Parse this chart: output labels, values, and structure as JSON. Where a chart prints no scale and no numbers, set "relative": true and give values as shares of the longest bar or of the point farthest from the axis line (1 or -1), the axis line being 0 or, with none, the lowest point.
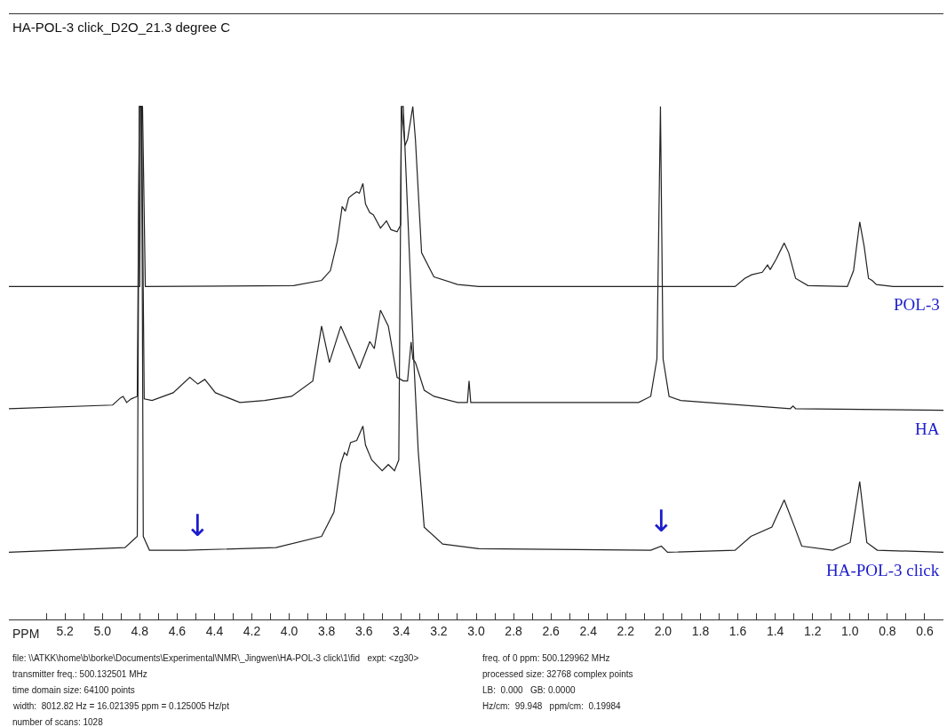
{
  "chart_data": {
    "type": "line",
    "title": "HA-POL-3 click_D2O_21.3 degree C",
    "xlabel": "PPM",
    "relative": true,
    "xlim": [
      5.5,
      0.5
    ],
    "xticks": [
      5.2,
      {
        "value": 5,
        "label": "5.0"
      },
      4.8,
      4.6,
      4.4,
      4.2,
      {
        "value": 4,
        "label": "4.0"
      },
      3.8,
      3.6,
      3.4,
      3.2,
      {
        "value": 3,
        "label": "3.0"
      },
      2.8,
      2.6,
      2.4,
      2.2,
      {
        "value": 2,
        "label": "2.0"
      },
      1.8,
      1.6,
      1.4,
      1.2,
      {
        "value": 1,
        "label": "1.0"
      },
      0.8,
      0.6,
      {
        "value": 5.3,
        "label": null
      },
      {
        "value": 5.1,
        "label": null
      },
      {
        "value": 4.9,
        "label": null
      },
      {
        "value": 4.7,
        "label": null
      },
      {
        "value": 4.5,
        "label": null
      },
      {
        "value": 4.3,
        "label": null
      },
      {
        "value": 4.1,
        "label": null
      },
      {
        "value": 3.9,
        "label": null
      },
      {
        "value": 3.7,
        "label": null
      },
      {
        "value": 3.5,
        "label": null
      },
      {
        "value": 3.3,
        "label": null
      },
      {
        "value": 3.1,
        "label": null
      },
      {
        "value": 2.9,
        "label": null
      },
      {
        "value": 2.7,
        "label": null
      },
      {
        "value": 2.5,
        "label": null
      },
      {
        "value": 2.3,
        "label": null
      },
      {
        "value": 2.1,
        "label": null
      },
      {
        "value": 1.9,
        "label": null
      },
      {
        "value": 1.7,
        "label": null
      },
      {
        "value": 1.5,
        "label": null
      },
      {
        "value": 1.3,
        "label": null
      },
      {
        "value": 1.1,
        "label": null
      },
      {
        "value": 0.9,
        "label": null
      },
      {
        "value": 0.7,
        "label": null
      }
    ],
    "legend": false,
    "marker": "none",
    "line_style": "solid",
    "series": [
      {
        "name": "POL-3",
        "color": "#222222",
        "x": [
          5.5,
          4.82,
          4.8,
          4.795,
          4.785,
          4.77,
          3.977,
          3.827,
          3.78,
          3.743,
          3.717,
          3.7,
          3.682,
          3.658,
          3.639,
          3.625,
          3.606,
          3.592,
          3.569,
          3.55,
          3.512,
          3.48,
          3.456,
          3.423,
          3.404,
          3.4,
          3.381,
          3.367,
          3.339,
          3.325,
          3.292,
          3.226,
          3.099,
          2.986,
          1.615,
          1.563,
          1.526,
          1.469,
          1.441,
          1.427,
          1.394,
          1.352,
          1.328,
          1.291,
          1.225,
          1.014,
          0.981,
          0.948,
          0.924,
          0.901,
          0.882,
          0.859,
          0.769,
          0.5
        ],
        "values": [
          0.649,
          0.649,
          0.649,
          1.0,
          1.0,
          0.649,
          0.651,
          0.661,
          0.68,
          0.737,
          0.805,
          0.796,
          0.822,
          0.829,
          0.834,
          0.831,
          0.85,
          0.81,
          0.793,
          0.789,
          0.763,
          0.777,
          0.76,
          0.756,
          0.769,
          1.0,
          0.924,
          0.936,
          1.0,
          0.936,
          0.715,
          0.668,
          0.653,
          0.649,
          0.649,
          0.665,
          0.672,
          0.677,
          0.691,
          0.682,
          0.703,
          0.734,
          0.715,
          0.665,
          0.651,
          0.649,
          0.68,
          0.775,
          0.727,
          0.665,
          0.661,
          0.653,
          0.649,
          0.649
        ]
      },
      {
        "name": "HA",
        "color": "#222222",
        "x": [
          5.5,
          4.945,
          4.903,
          4.889,
          4.87,
          4.846,
          4.813,
          4.802,
          4.79,
          4.776,
          4.734,
          4.621,
          4.532,
          4.489,
          4.452,
          4.395,
          4.264,
          4.132,
          3.987,
          3.874,
          3.827,
          3.785,
          3.724,
          3.625,
          3.569,
          3.545,
          3.512,
          3.47,
          3.423,
          3.39,
          3.367,
          3.348,
          3.339,
          3.325,
          3.278,
          3.226,
          3.099,
          3.047,
          3.038,
          3.029,
          2.131,
          2.066,
          2.033,
          2.014,
          2.0,
          1.968,
          1.906,
          1.319,
          1.305,
          1.291,
          0.5
        ],
        "values": [
          0.411,
          0.418,
          0.432,
          0.435,
          0.423,
          0.43,
          0.435,
          1.0,
          1.0,
          0.43,
          0.427,
          0.442,
          0.472,
          0.459,
          0.468,
          0.442,
          0.423,
          0.427,
          0.435,
          0.465,
          0.572,
          0.501,
          0.572,
          0.489,
          0.542,
          0.528,
          0.603,
          0.572,
          0.472,
          0.465,
          0.465,
          0.541,
          0.508,
          0.501,
          0.447,
          0.435,
          0.423,
          0.423,
          0.465,
          0.423,
          0.423,
          0.435,
          0.508,
          1.0,
          0.508,
          0.435,
          0.427,
          0.411,
          0.416,
          0.411,
          0.408
        ]
      },
      {
        "name": "HA-POL-3 click",
        "color": "#222222",
        "x": [
          5.5,
          4.879,
          4.813,
          4.802,
          4.79,
          4.781,
          4.748,
          4.555,
          4.071,
          3.827,
          3.761,
          3.724,
          3.705,
          3.691,
          3.672,
          3.639,
          3.625,
          3.606,
          3.592,
          3.559,
          3.503,
          3.47,
          3.437,
          3.414,
          3.4,
          3.39,
          3.334,
          3.31,
          3.278,
          3.179,
          2.986,
          2.066,
          2.009,
          1.976,
          1.615,
          1.53,
          1.418,
          1.352,
          1.296,
          1.258,
          1.093,
          0.999,
          0.948,
          0.91,
          0.854,
          0.5
        ],
        "values": [
          0.131,
          0.14,
          0.162,
          1.0,
          1.0,
          0.162,
          0.135,
          0.135,
          0.14,
          0.162,
          0.209,
          0.304,
          0.325,
          0.32,
          0.345,
          0.349,
          0.361,
          0.377,
          0.34,
          0.311,
          0.29,
          0.302,
          0.29,
          0.311,
          1.0,
          1.0,
          0.508,
          0.328,
          0.18,
          0.147,
          0.138,
          0.135,
          0.143,
          0.131,
          0.135,
          0.162,
          0.18,
          0.233,
          0.18,
          0.143,
          0.135,
          0.15,
          0.269,
          0.15,
          0.135,
          0.131
        ]
      }
    ],
    "annotations": [
      {
        "text": "↓",
        "x": 4.49,
        "y": 0.135
      },
      {
        "text": "↓",
        "x": 2.009,
        "y": 0.143
      },
      "file: \\\\ATKK\\home\\b\\borke\\Documents\\Experimental\\NMR\\_Jingwen\\HA-POL-3 click\\1\\fid   expt: <zg30>",
      "transmitter freq.: 500.132501 MHz",
      "time domain size: 64100 points",
      "width:  8012.82 Hz = 16.021395 ppm = 0.125005 Hz/pt",
      "number of scans: 1028",
      "freq. of 0 ppm: 500.129962 MHz",
      "processed size: 32768 complex points",
      "LB:  0.000   GB: 0.0000",
      "Hz/cm:  99.948   ppm/cm:  0.19984"
    ]
  }
}
